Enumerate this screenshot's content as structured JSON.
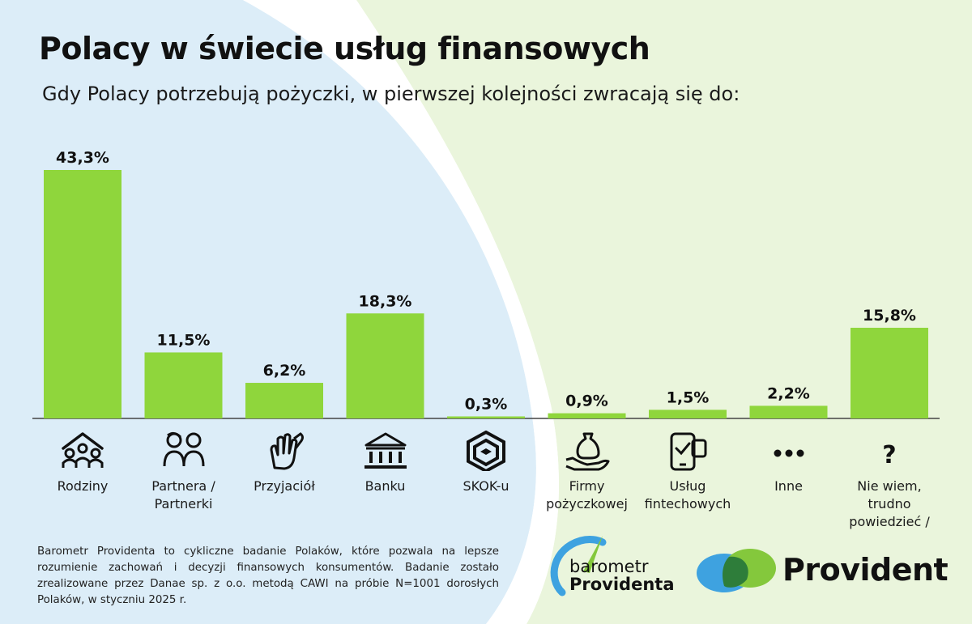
{
  "title": "Polacy w świecie usług finansowych",
  "subtitle": "Gdy Polacy potrzebują pożyczki, w pierwszej kolejności zwracają się do:",
  "colors": {
    "bar": "#8fd63c",
    "background_green": "#eaf5dc",
    "background_blue": "#dcedf8",
    "baseline": "#444444",
    "provident_blue": "#3ea2e0",
    "provident_green": "#84c83c"
  },
  "chart_data": {
    "type": "bar",
    "categories": [
      "Rodziny",
      "Partnera /\nPartnerki",
      "Przyjaciół",
      "Banku",
      "SKOK-u",
      "Firmy\npożyczkowej",
      "Usług\nfintechowych",
      "Inne",
      "Nie wiem, trudno\npowiedzieć /"
    ],
    "values": [
      43.3,
      11.5,
      6.2,
      18.3,
      0.3,
      0.9,
      1.5,
      2.2,
      15.8
    ],
    "value_labels": [
      "43,3%",
      "11,5%",
      "6,2%",
      "18,3%",
      "0,3%",
      "0,9%",
      "1,5%",
      "2,2%",
      "15,8%"
    ],
    "icons": [
      "family-icon",
      "couple-icon",
      "hands-icon",
      "bank-icon",
      "skok-hexagon-icon",
      "money-bag-hand-icon",
      "phone-card-icon",
      "ellipsis-icon",
      "question-mark-icon"
    ],
    "ylim": [
      0,
      45
    ]
  },
  "footer": {
    "note": "Barometr Providenta to cykliczne badanie Polaków, które pozwala na lepsze rozumienie zachowań i decyzji finansowych konsumentów. Badanie zostało zrealizowane przez Danae sp. z o.o. metodą CAWI na próbie N=1001 dorosłych Polaków, w styczniu 2025 r."
  },
  "logos": {
    "barometr_line1": "barometr",
    "barometr_line2": "Providenta",
    "provident": "Provident"
  }
}
